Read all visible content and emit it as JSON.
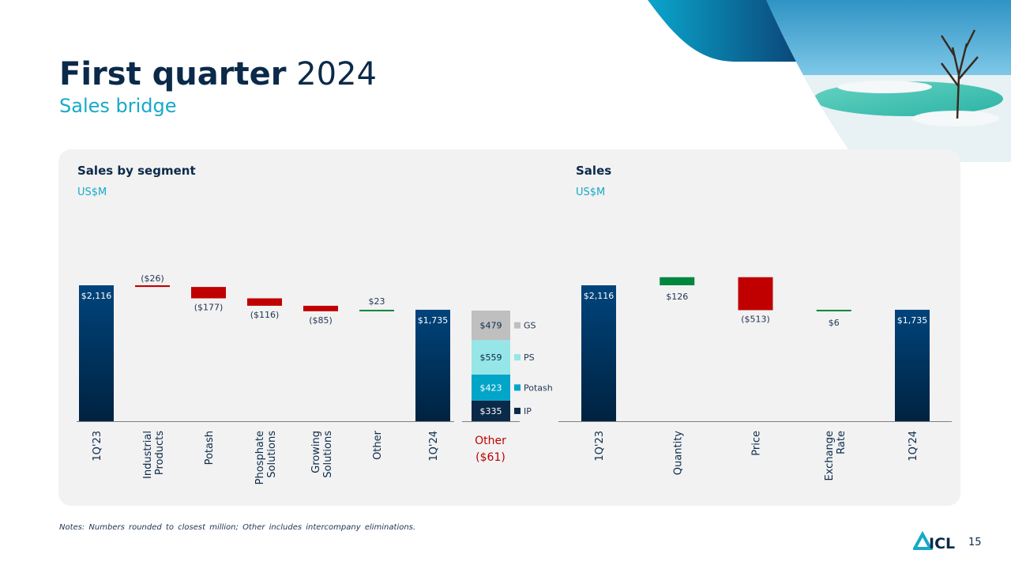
{
  "title": {
    "bold": "First quarter",
    "regular": " 2024"
  },
  "subtitle": "Sales bridge",
  "colors": {
    "bar_dark": "#002a4e",
    "negative": "#c00000",
    "positive": "#00873e",
    "ip": "#0b2a4a",
    "potash": "#00a5c8",
    "ps": "#96e6e8",
    "gs": "#bfbfbf",
    "accent": "#17a9c9"
  },
  "chart_data": [
    {
      "type": "waterfall",
      "title": "Sales by segment",
      "unit": "US$M",
      "categories": [
        "1Q'23",
        "Industrial Products",
        "Potash",
        "Phosphate Solutions",
        "Growing Solutions",
        "Other",
        "1Q'24"
      ],
      "values": [
        2116,
        -26,
        -177,
        -116,
        -85,
        23,
        1735
      ],
      "labels": [
        "$2,116",
        "($26)",
        "($177)",
        "($116)",
        "($85)",
        "$23",
        "$1,735"
      ],
      "kinds": [
        "total",
        "delta",
        "delta",
        "delta",
        "delta",
        "delta",
        "total"
      ],
      "breakdown": {
        "label": "Other ($61)",
        "segments": [
          {
            "name": "IP",
            "value": 335,
            "label": "$335"
          },
          {
            "name": "Potash",
            "value": 423,
            "label": "$423"
          },
          {
            "name": "PS",
            "value": 559,
            "label": "$559"
          },
          {
            "name": "GS",
            "value": 479,
            "label": "$479"
          }
        ]
      }
    },
    {
      "type": "waterfall",
      "title": "Sales",
      "unit": "US$M",
      "categories": [
        "1Q'23",
        "Quantity",
        "Price",
        "Exchange Rate",
        "1Q'24"
      ],
      "values": [
        2116,
        126,
        -513,
        6,
        1735
      ],
      "labels": [
        "$2,116",
        "$126",
        "($513)",
        "$6",
        "$1,735"
      ],
      "kinds": [
        "total",
        "delta",
        "delta",
        "delta",
        "total"
      ]
    }
  ],
  "footer": {
    "note": "Notes: Numbers rounded to closest million; Other includes intercompany eliminations.",
    "logo_text": "ICL",
    "page": "15"
  }
}
